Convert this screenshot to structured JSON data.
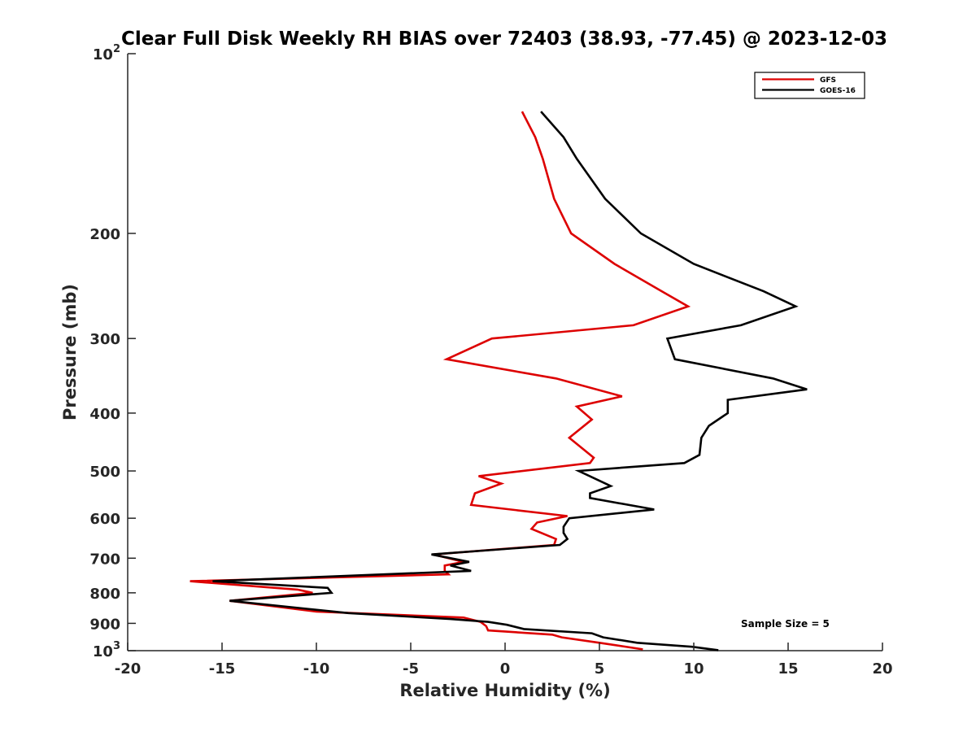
{
  "chart_data": {
    "type": "line",
    "title": "Clear Full Disk Weekly RH BIAS over 72403 (38.93, -77.45) @ 2023-12-03",
    "xlabel": "Relative Humidity (%)",
    "ylabel": "Pressure (mb)",
    "xlim": [
      -20,
      20
    ],
    "ylim": [
      1000,
      100
    ],
    "y_scale": "log",
    "y_reversed": true,
    "grid": false,
    "legend_position": "top-right",
    "x_ticks": [
      -20,
      -15,
      -10,
      -5,
      0,
      5,
      10,
      15,
      20
    ],
    "x_tick_labels": [
      "-20",
      "-15",
      "-10",
      "-5",
      "0",
      "5",
      "10",
      "15",
      "20"
    ],
    "y_ticks": [
      100,
      200,
      300,
      400,
      500,
      600,
      700,
      800,
      900,
      1000
    ],
    "y_tick_labels": [
      {
        "base": "10",
        "exp": "2"
      },
      {
        "base": "200"
      },
      {
        "base": "300"
      },
      {
        "base": "400"
      },
      {
        "base": "500"
      },
      {
        "base": "600"
      },
      {
        "base": "700"
      },
      {
        "base": "800"
      },
      {
        "base": "900"
      },
      {
        "base": "10",
        "exp": "3"
      }
    ],
    "annotation": "Sample Size = 5",
    "series": [
      {
        "name": "GFS",
        "color": "#dd0000",
        "points": [
          [
            0.9,
            125
          ],
          [
            1.6,
            138
          ],
          [
            2.0,
            150
          ],
          [
            2.6,
            175
          ],
          [
            3.5,
            200
          ],
          [
            5.8,
            225
          ],
          [
            8.3,
            250
          ],
          [
            9.7,
            265
          ],
          [
            6.8,
            285
          ],
          [
            -0.7,
            300
          ],
          [
            -3.1,
            325
          ],
          [
            2.7,
            350
          ],
          [
            6.2,
            375
          ],
          [
            3.8,
            390
          ],
          [
            4.6,
            410
          ],
          [
            3.4,
            440
          ],
          [
            4.7,
            475
          ],
          [
            4.5,
            485
          ],
          [
            -1.4,
            510
          ],
          [
            -0.2,
            525
          ],
          [
            -1.6,
            545
          ],
          [
            -1.8,
            570
          ],
          [
            3.3,
            595
          ],
          [
            1.7,
            610
          ],
          [
            1.4,
            625
          ],
          [
            2.7,
            650
          ],
          [
            2.6,
            665
          ],
          [
            -3.8,
            690
          ],
          [
            -2.2,
            710
          ],
          [
            -3.2,
            720
          ],
          [
            -3.2,
            735
          ],
          [
            -3.0,
            745
          ],
          [
            -16.7,
            765
          ],
          [
            -11.0,
            790
          ],
          [
            -10.2,
            800
          ],
          [
            -14.6,
            825
          ],
          [
            -10.0,
            860
          ],
          [
            -2.2,
            880
          ],
          [
            -1.3,
            895
          ],
          [
            -1.0,
            910
          ],
          [
            -0.9,
            925
          ],
          [
            2.5,
            940
          ],
          [
            3.0,
            950
          ],
          [
            5.0,
            970
          ],
          [
            7.3,
            995
          ]
        ]
      },
      {
        "name": "GOES-16",
        "color": "#000000",
        "points": [
          [
            1.9,
            125
          ],
          [
            3.1,
            138
          ],
          [
            3.8,
            150
          ],
          [
            5.3,
            175
          ],
          [
            7.2,
            200
          ],
          [
            10.0,
            225
          ],
          [
            13.7,
            250
          ],
          [
            15.4,
            265
          ],
          [
            12.5,
            285
          ],
          [
            8.6,
            300
          ],
          [
            9.0,
            325
          ],
          [
            14.2,
            350
          ],
          [
            16.0,
            365
          ],
          [
            11.8,
            380
          ],
          [
            11.8,
            400
          ],
          [
            10.8,
            420
          ],
          [
            10.4,
            440
          ],
          [
            10.3,
            470
          ],
          [
            9.5,
            485
          ],
          [
            3.9,
            500
          ],
          [
            5.6,
            530
          ],
          [
            4.5,
            545
          ],
          [
            4.5,
            555
          ],
          [
            7.9,
            580
          ],
          [
            3.4,
            600
          ],
          [
            3.1,
            620
          ],
          [
            3.1,
            635
          ],
          [
            3.3,
            650
          ],
          [
            2.9,
            665
          ],
          [
            -3.9,
            690
          ],
          [
            -1.9,
            710
          ],
          [
            -2.9,
            720
          ],
          [
            -1.8,
            735
          ],
          [
            -15.5,
            765
          ],
          [
            -9.4,
            785
          ],
          [
            -9.2,
            800
          ],
          [
            -14.6,
            825
          ],
          [
            -8.3,
            865
          ],
          [
            -2.9,
            885
          ],
          [
            -0.9,
            895
          ],
          [
            0.1,
            905
          ],
          [
            1.0,
            920
          ],
          [
            4.6,
            935
          ],
          [
            5.2,
            950
          ],
          [
            7.0,
            970
          ],
          [
            9.9,
            985
          ],
          [
            11.3,
            998
          ]
        ]
      }
    ]
  }
}
